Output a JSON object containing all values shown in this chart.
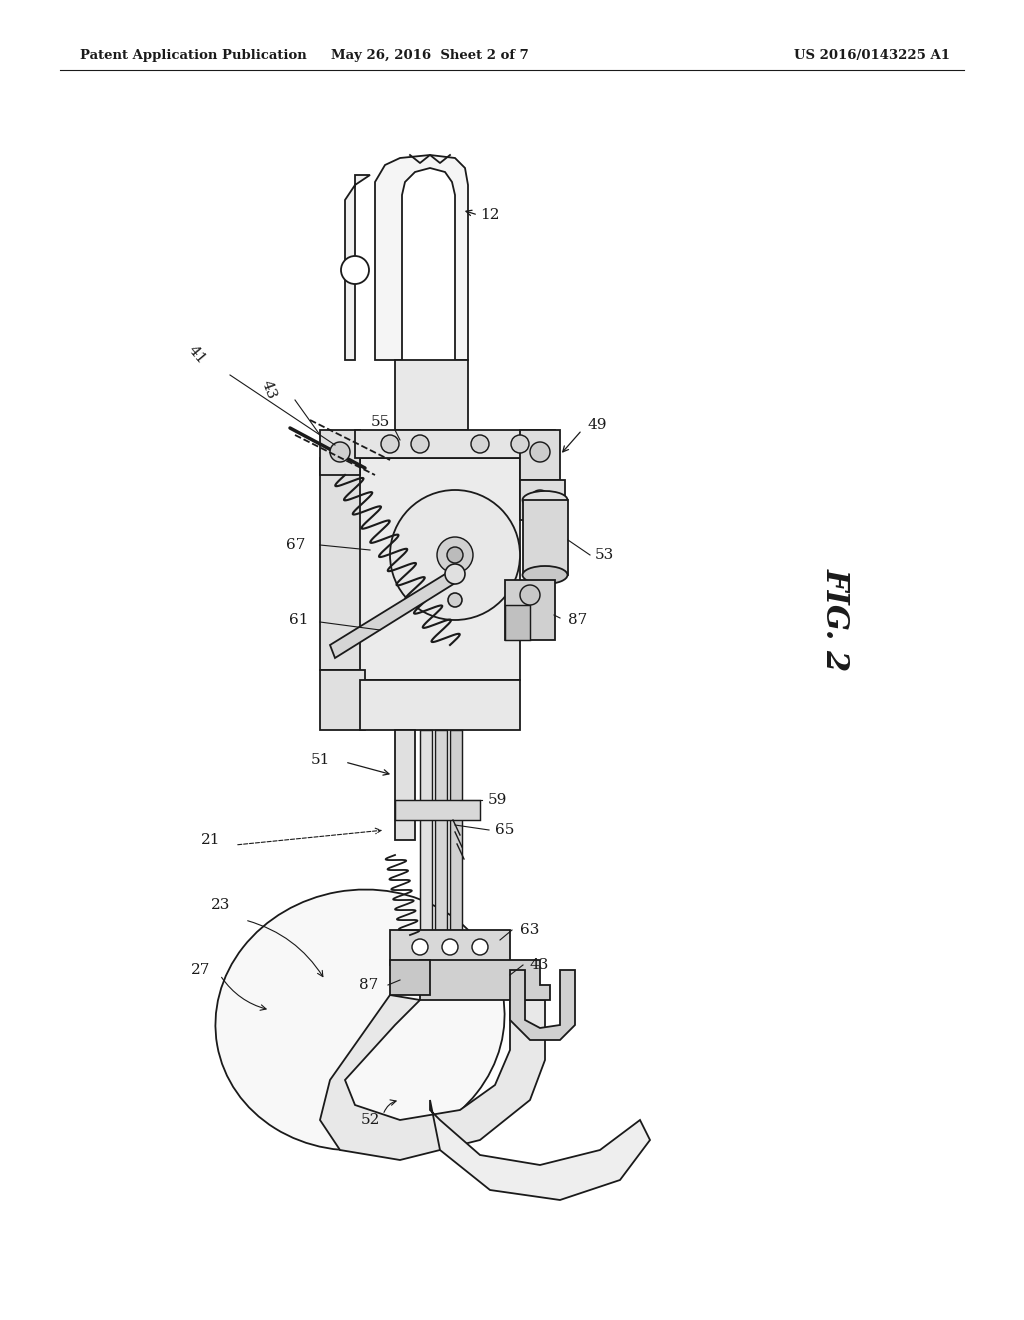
{
  "header_left": "Patent Application Publication",
  "header_mid": "May 26, 2016  Sheet 2 of 7",
  "header_right": "US 2016/0143225 A1",
  "fig_label": "FIG. 2",
  "background_color": "#ffffff",
  "line_color": "#1a1a1a",
  "header_fontsize": 9.5,
  "fig_label_fontsize": 22,
  "label_fontsize": 11,
  "page_width": 10.24,
  "page_height": 13.2,
  "dpi": 100
}
